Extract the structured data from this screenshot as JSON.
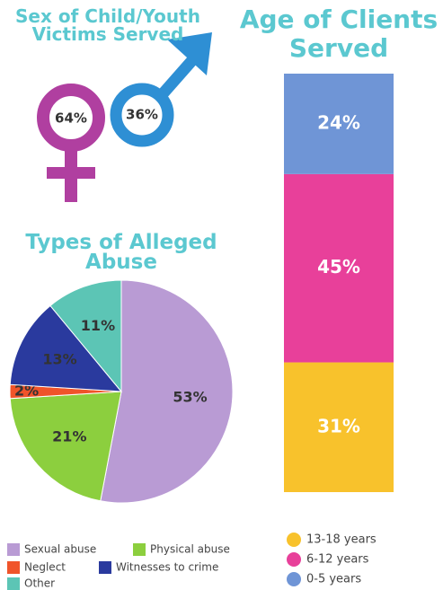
{
  "chart_data": [
    {
      "type": "gender",
      "title": "Sex of Child/Youth Victims Served",
      "values": [
        64,
        36
      ],
      "value_labels": [
        "64%",
        "36%"
      ],
      "colors": [
        "#b03fa0",
        "#2e8fd4"
      ]
    },
    {
      "type": "stacked-bar",
      "title": "Age of Clients Served",
      "series": [
        {
          "name": "13-18 years",
          "color": "#f8c22c",
          "values": [
            31
          ],
          "value_labels": [
            "31%"
          ]
        },
        {
          "name": "6-12 years",
          "color": "#e8409a",
          "values": [
            45
          ],
          "value_labels": [
            "45%"
          ]
        },
        {
          "name": "0-5 years",
          "color": "#6f95d6",
          "values": [
            24
          ],
          "value_labels": [
            "24%"
          ]
        }
      ]
    },
    {
      "type": "pie",
      "title": "Types of Alleged Abuse",
      "categories": [
        "Sexual abuse",
        "Physical abuse",
        "Neglect",
        "Witnesses to crime",
        "Other"
      ],
      "values": [
        53,
        21,
        2,
        13,
        11
      ],
      "value_labels": [
        "53%",
        "21%",
        "2%",
        "13%",
        "11%"
      ],
      "colors": [
        "#b99bd4",
        "#8ccf3e",
        "#f0542a",
        "#2a3a9e",
        "#5cc5b5"
      ]
    }
  ]
}
